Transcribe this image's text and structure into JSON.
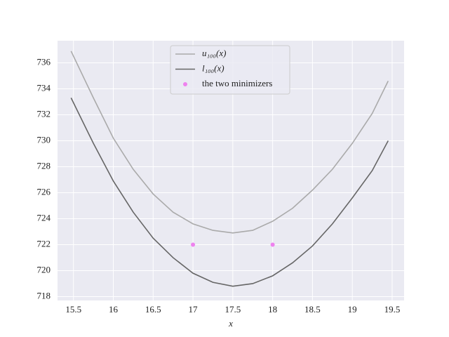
{
  "chart_data": {
    "type": "line",
    "x_label": "x",
    "xlim": [
      15.3,
      19.65
    ],
    "ylim": [
      717.7,
      737.7
    ],
    "xticks": [
      15.5,
      16,
      16.5,
      17,
      17.5,
      18,
      18.5,
      19,
      19.5
    ],
    "yticks": [
      718,
      720,
      722,
      724,
      726,
      728,
      730,
      732,
      734,
      736
    ],
    "grid": true,
    "legend": "upper center",
    "x": [
      15.47,
      15.75,
      16,
      16.25,
      16.5,
      16.75,
      17,
      17.25,
      17.5,
      17.75,
      18,
      18.25,
      18.5,
      18.75,
      19,
      19.25,
      19.45
    ],
    "series": [
      {
        "name": "u₁₀₀(x)",
        "color": "#aaaaaa",
        "values": [
          736.9,
          733.3,
          730.2,
          727.8,
          725.9,
          724.5,
          723.6,
          723.1,
          722.9,
          723.1,
          723.8,
          724.8,
          726.2,
          727.8,
          729.8,
          732.1,
          734.6
        ]
      },
      {
        "name": "l₁₀₀(x)",
        "color": "#666666",
        "values": [
          733.3,
          729.8,
          726.9,
          724.5,
          722.5,
          721.0,
          719.8,
          719.1,
          718.8,
          719.0,
          719.6,
          720.6,
          721.9,
          723.6,
          725.6,
          727.7,
          730.0
        ]
      }
    ],
    "points": {
      "name": "the two minimizers",
      "color": "#ee82ee",
      "x": [
        17,
        18
      ],
      "values": [
        722,
        722
      ]
    }
  }
}
